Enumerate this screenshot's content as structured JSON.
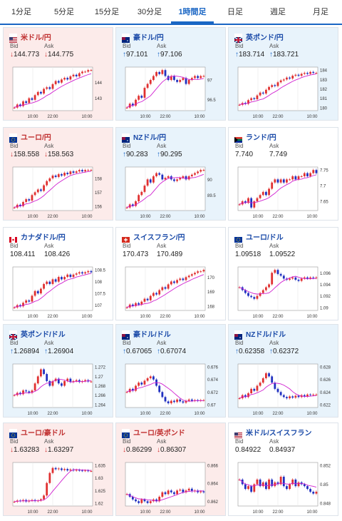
{
  "tabs": [
    {
      "label": "1分足",
      "active": false
    },
    {
      "label": "5分足",
      "active": false
    },
    {
      "label": "15分足",
      "active": false
    },
    {
      "label": "30分足",
      "active": false
    },
    {
      "label": "1時間足",
      "active": true
    },
    {
      "label": "日足",
      "active": false
    },
    {
      "label": "週足",
      "active": false
    },
    {
      "label": "月足",
      "active": false
    }
  ],
  "bid_label": "Bid",
  "ask_label": "Ask",
  "cards": [
    {
      "pair": "米ドル/円",
      "flag": "us-jp",
      "state": "down",
      "bid_dir": "down",
      "ask_dir": "down",
      "bid": "144.773",
      "ask": "144.775",
      "chart_data": {
        "type": "candlestick",
        "x_ticks": [
          "10:00",
          "22:00",
          "10:00"
        ],
        "y_ticks": [
          "144",
          "143"
        ],
        "trend": "up",
        "series": [
          142.4,
          142.6,
          142.5,
          142.8,
          142.7,
          143.0,
          142.9,
          143.2,
          143.4,
          143.3,
          143.6,
          143.7,
          143.6,
          143.9,
          144.1,
          144.0,
          144.2,
          144.3,
          144.2,
          144.4,
          144.5,
          144.4,
          144.6,
          144.7,
          144.7,
          144.8,
          144.8
        ]
      }
    },
    {
      "pair": "豪ドル/円",
      "flag": "au-jp",
      "state": "up",
      "bid_dir": "up",
      "ask_dir": "up",
      "bid": "97.101",
      "ask": "97.106",
      "chart_data": {
        "type": "candlestick",
        "x_ticks": [
          "10:00",
          "22:00",
          "10:00"
        ],
        "y_ticks": [
          "97",
          "96.5"
        ],
        "trend": "up",
        "series": [
          96.3,
          96.4,
          96.35,
          96.5,
          96.6,
          96.55,
          96.8,
          96.9,
          97.0,
          97.1,
          97.2,
          97.15,
          97.25,
          97.1,
          97.0,
          97.1,
          97.0,
          96.95,
          97.0,
          97.05,
          96.9,
          97.0,
          97.05,
          97.1,
          97.05,
          97.1,
          97.1
        ]
      }
    },
    {
      "pair": "英ポンド/円",
      "flag": "gb-jp",
      "state": "up",
      "bid_dir": "up",
      "ask_dir": "up",
      "bid": "183.714",
      "ask": "183.721",
      "chart_data": {
        "type": "candlestick",
        "x_ticks": [
          "10:00",
          "22:00",
          "10:00"
        ],
        "y_ticks": [
          "184",
          "183",
          "182",
          "181",
          "180"
        ],
        "trend": "up",
        "series": [
          180.3,
          180.5,
          180.4,
          180.8,
          181.0,
          180.9,
          181.3,
          181.6,
          181.5,
          181.9,
          182.2,
          182.4,
          182.3,
          182.7,
          182.9,
          183.0,
          183.2,
          183.1,
          183.4,
          183.5,
          183.4,
          183.6,
          183.7,
          183.6,
          183.8,
          183.7,
          183.7
        ]
      }
    },
    {
      "pair": "ユーロ/円",
      "flag": "eu-jp",
      "state": "down",
      "bid_dir": "down",
      "ask_dir": "down",
      "bid": "158.558",
      "ask": "158.563",
      "chart_data": {
        "type": "candlestick",
        "x_ticks": [
          "10:00",
          "22:00",
          "10:00"
        ],
        "y_ticks": [
          "158",
          "157",
          "156"
        ],
        "trend": "up",
        "series": [
          155.9,
          156.1,
          156.0,
          156.3,
          156.5,
          156.4,
          156.8,
          157.0,
          157.2,
          157.1,
          157.5,
          157.8,
          158.0,
          158.2,
          158.1,
          158.3,
          158.2,
          158.4,
          158.3,
          158.5,
          158.4,
          158.5,
          158.6,
          158.5,
          158.6,
          158.6,
          158.6
        ]
      }
    },
    {
      "pair": "NZドル/円",
      "flag": "nz-jp",
      "state": "up",
      "bid_dir": "up",
      "ask_dir": "up",
      "bid": "90.283",
      "ask": "90.295",
      "chart_data": {
        "type": "candlestick",
        "x_ticks": [
          "10:00",
          "22:00",
          "10:00"
        ],
        "y_ticks": [
          "90",
          "89.5"
        ],
        "trend": "up",
        "series": [
          89.1,
          89.2,
          89.15,
          89.3,
          89.5,
          89.6,
          89.8,
          90.0,
          89.9,
          90.1,
          90.2,
          90.15,
          90.0,
          90.05,
          90.1,
          90.0,
          89.95,
          90.0,
          90.05,
          90.1,
          90.0,
          90.1,
          90.15,
          90.2,
          90.25,
          90.3,
          90.3
        ]
      }
    },
    {
      "pair": "ランド/円",
      "flag": "za-jp",
      "state": "flat",
      "bid_dir": "none",
      "ask_dir": "none",
      "bid": "7.740",
      "ask": "7.749",
      "chart_data": {
        "type": "candlestick",
        "x_ticks": [
          "10:00",
          "22:00",
          "10:00"
        ],
        "y_ticks": [
          "7.75",
          "7.7",
          "7.65"
        ],
        "trend": "up",
        "series": [
          7.64,
          7.65,
          7.645,
          7.66,
          7.63,
          7.65,
          7.66,
          7.67,
          7.68,
          7.67,
          7.69,
          7.71,
          7.72,
          7.71,
          7.72,
          7.71,
          7.72,
          7.72,
          7.73,
          7.72,
          7.73,
          7.73,
          7.74,
          7.73,
          7.74,
          7.75,
          7.74
        ]
      }
    },
    {
      "pair": "カナダドル/円",
      "flag": "ca-jp",
      "state": "flat",
      "bid_dir": "none",
      "ask_dir": "none",
      "bid": "108.411",
      "ask": "108.426",
      "chart_data": {
        "type": "candlestick",
        "x_ticks": [
          "10:00",
          "22:00",
          "10:00"
        ],
        "y_ticks": [
          "108.5",
          "108",
          "107.5",
          "107"
        ],
        "trend": "up",
        "series": [
          106.9,
          107.0,
          106.95,
          107.1,
          107.2,
          107.15,
          107.4,
          107.6,
          107.5,
          107.7,
          107.9,
          108.0,
          107.9,
          108.1,
          108.0,
          108.2,
          108.1,
          108.2,
          108.3,
          108.2,
          108.3,
          108.35,
          108.4,
          108.35,
          108.4,
          108.45,
          108.4
        ]
      }
    },
    {
      "pair": "スイスフラン/円",
      "flag": "ch-jp",
      "state": "flat",
      "bid_dir": "none",
      "ask_dir": "none",
      "bid": "170.473",
      "ask": "170.489",
      "chart_data": {
        "type": "candlestick",
        "x_ticks": [
          "10:00",
          "22:00",
          "10:00"
        ],
        "y_ticks": [
          "170",
          "169",
          "168"
        ],
        "trend": "up",
        "series": [
          167.9,
          168.1,
          168.0,
          168.2,
          168.1,
          168.3,
          168.5,
          168.4,
          168.7,
          168.9,
          168.8,
          169.1,
          169.3,
          169.2,
          169.5,
          169.7,
          169.6,
          169.8,
          169.9,
          169.8,
          170.0,
          170.1,
          170.2,
          170.3,
          170.4,
          170.4,
          170.5
        ]
      }
    },
    {
      "pair": "ユーロ/ドル",
      "flag": "eu-us",
      "state": "flat",
      "bid_dir": "none",
      "ask_dir": "none",
      "bid": "1.09518",
      "ask": "1.09522",
      "chart_data": {
        "type": "candlestick",
        "x_ticks": [
          "10:00",
          "22:00",
          "10:00"
        ],
        "y_ticks": [
          "1.096",
          "1.094",
          "1.092",
          "1.09"
        ],
        "trend": "flat",
        "series": [
          1.0935,
          1.093,
          1.0925,
          1.092,
          1.0918,
          1.0915,
          1.092,
          1.0925,
          1.093,
          1.0935,
          1.094,
          1.096,
          1.0965,
          1.0958,
          1.0955,
          1.095,
          1.0948,
          1.095,
          1.0952,
          1.0948,
          1.0946,
          1.095,
          1.0952,
          1.095,
          1.0952,
          1.0951,
          1.0952
        ]
      }
    },
    {
      "pair": "英ポンド/ドル",
      "flag": "gb-us",
      "state": "up",
      "bid_dir": "up",
      "ask_dir": "up",
      "bid": "1.26894",
      "ask": "1.26904",
      "chart_data": {
        "type": "candlestick",
        "x_ticks": [
          "10:00",
          "22:00",
          "10:00"
        ],
        "y_ticks": [
          "1.272",
          "1.27",
          "1.268",
          "1.266",
          "1.264"
        ],
        "trend": "flat",
        "series": [
          1.266,
          1.2665,
          1.2662,
          1.267,
          1.2668,
          1.2665,
          1.267,
          1.2685,
          1.27,
          1.2715,
          1.2705,
          1.269,
          1.268,
          1.269,
          1.2695,
          1.2685,
          1.268,
          1.269,
          1.2695,
          1.2688,
          1.269,
          1.2692,
          1.2688,
          1.269,
          1.2692,
          1.2689,
          1.2689
        ]
      }
    },
    {
      "pair": "豪ドル/ドル",
      "flag": "au-us",
      "state": "up",
      "bid_dir": "up",
      "ask_dir": "up",
      "bid": "0.67065",
      "ask": "0.67074",
      "chart_data": {
        "type": "candlestick",
        "x_ticks": [
          "10:00",
          "22:00",
          "10:00"
        ],
        "y_ticks": [
          "0.676",
          "0.674",
          "0.672",
          "0.67"
        ],
        "trend": "down",
        "series": [
          0.672,
          0.6725,
          0.6722,
          0.673,
          0.6735,
          0.6732,
          0.6738,
          0.6742,
          0.6745,
          0.674,
          0.673,
          0.672,
          0.6712,
          0.6705,
          0.6702,
          0.6706,
          0.6704,
          0.6708,
          0.6705,
          0.6703,
          0.6706,
          0.6708,
          0.6706,
          0.6707,
          0.6706,
          0.6707,
          0.6707
        ]
      }
    },
    {
      "pair": "NZドル/ドル",
      "flag": "nz-us",
      "state": "up",
      "bid_dir": "up",
      "ask_dir": "up",
      "bid": "0.62358",
      "ask": "0.62372",
      "chart_data": {
        "type": "candlestick",
        "x_ticks": [
          "10:00",
          "22:00",
          "10:00"
        ],
        "y_ticks": [
          "0.628",
          "0.626",
          "0.624",
          "0.622"
        ],
        "trend": "down",
        "series": [
          0.623,
          0.6235,
          0.6232,
          0.6238,
          0.6245,
          0.6242,
          0.625,
          0.6255,
          0.6262,
          0.627,
          0.6265,
          0.6255,
          0.6245,
          0.624,
          0.6235,
          0.6232,
          0.623,
          0.6233,
          0.6231,
          0.6234,
          0.6232,
          0.6235,
          0.6233,
          0.6236,
          0.6235,
          0.6236,
          0.6236
        ]
      }
    },
    {
      "pair": "ユーロ/豪ドル",
      "flag": "eu-au",
      "state": "down",
      "bid_dir": "down",
      "ask_dir": "down",
      "bid": "1.63283",
      "ask": "1.63297",
      "chart_data": {
        "type": "candlestick",
        "x_ticks": [
          "10:00",
          "22:00",
          "10:00"
        ],
        "y_ticks": [
          "1.635",
          "1.63",
          "1.625",
          "1.62"
        ],
        "trend": "up",
        "series": [
          1.6205,
          1.621,
          1.6208,
          1.6212,
          1.6206,
          1.621,
          1.6212,
          1.6208,
          1.621,
          1.6215,
          1.623,
          1.628,
          1.632,
          1.634,
          1.6335,
          1.6338,
          1.6332,
          1.6336,
          1.633,
          1.6334,
          1.633,
          1.6332,
          1.633,
          1.6329,
          1.633,
          1.6328,
          1.6328
        ]
      }
    },
    {
      "pair": "ユーロ/英ポンド",
      "flag": "eu-gb",
      "state": "down",
      "bid_dir": "down",
      "ask_dir": "down",
      "bid": "0.86299",
      "ask": "0.86307",
      "chart_data": {
        "type": "candlestick",
        "x_ticks": [
          "10:00",
          "22:00",
          "10:00"
        ],
        "y_ticks": [
          "0.866",
          "0.864",
          "0.862"
        ],
        "trend": "down",
        "series": [
          0.8628,
          0.8625,
          0.8622,
          0.862,
          0.8618,
          0.8622,
          0.862,
          0.8618,
          0.862,
          0.8622,
          0.862,
          0.8625,
          0.863,
          0.8628,
          0.8632,
          0.863,
          0.8628,
          0.8632,
          0.8633,
          0.863,
          0.8632,
          0.8634,
          0.8631,
          0.8632,
          0.863,
          0.8631,
          0.863
        ]
      }
    },
    {
      "pair": "米ドル/スイスフラン",
      "flag": "us-ch",
      "state": "flat",
      "bid_dir": "none",
      "ask_dir": "none",
      "bid": "0.84922",
      "ask": "0.84937",
      "chart_data": {
        "type": "candlestick",
        "x_ticks": [
          "10:00",
          "22:00",
          "10:00"
        ],
        "y_ticks": [
          "0.852",
          "0.85",
          "0.848"
        ],
        "trend": "down",
        "series": [
          0.8505,
          0.85,
          0.8495,
          0.8498,
          0.8492,
          0.85,
          0.8505,
          0.8498,
          0.8502,
          0.8495,
          0.8505,
          0.8498,
          0.8502,
          0.85,
          0.8508,
          0.8498,
          0.8495,
          0.85,
          0.8505,
          0.8498,
          0.8502,
          0.85,
          0.8498,
          0.8495,
          0.8492,
          0.849,
          0.8492
        ]
      }
    }
  ],
  "colors": {
    "accent": "#1a66c4",
    "up_bg": "#e8f3fb",
    "down_bg": "#fcebea",
    "candle_up": "#e03030",
    "candle_down": "#2030c0",
    "ma": "#d020d0"
  }
}
